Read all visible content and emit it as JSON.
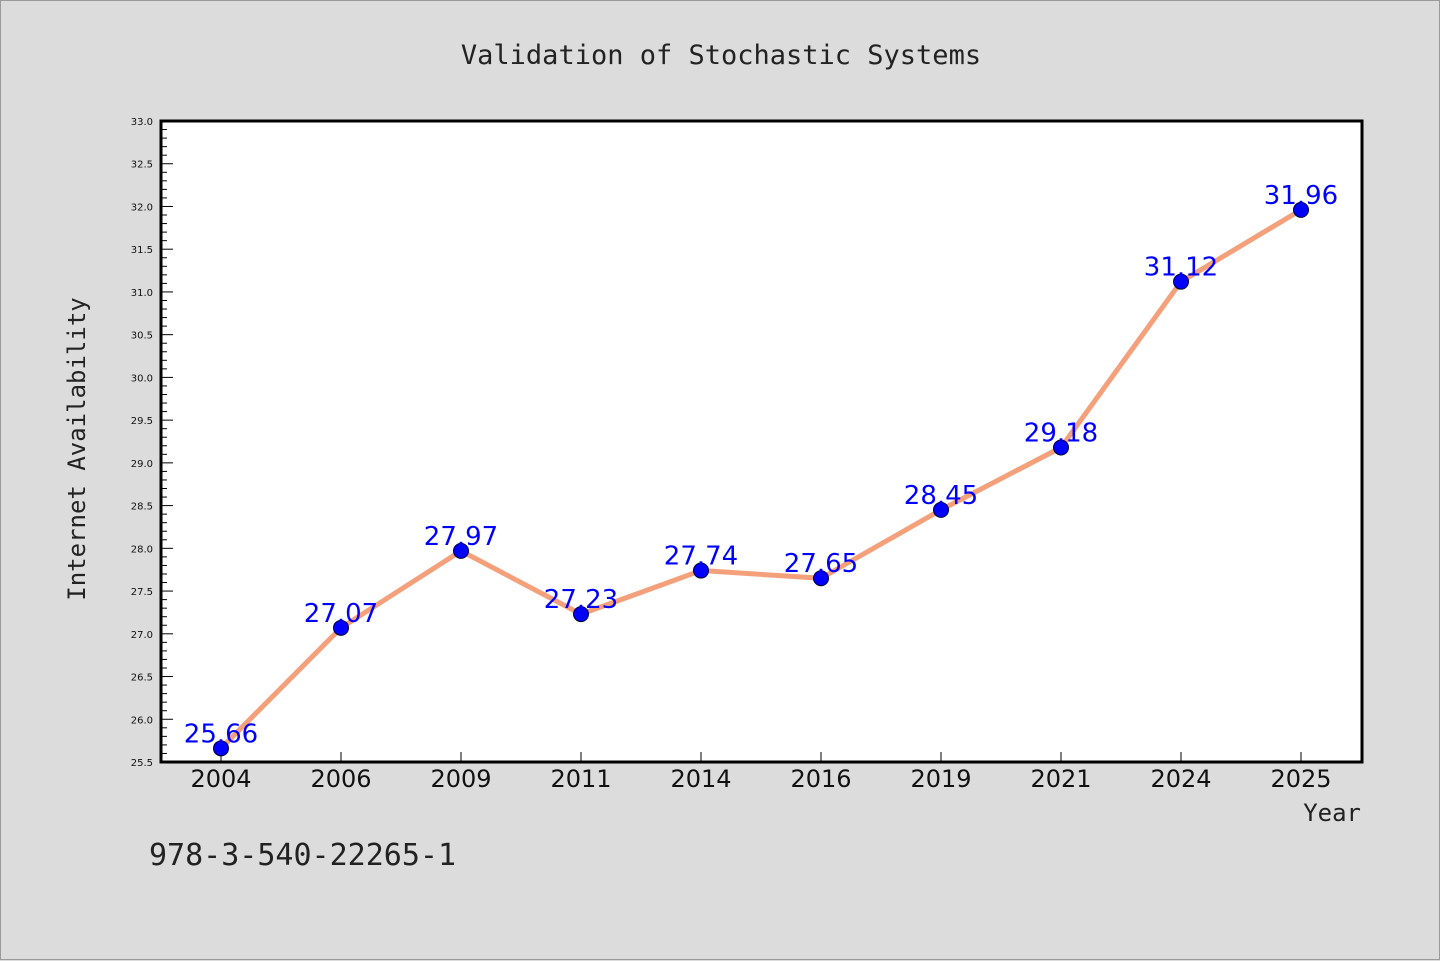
{
  "colors": {
    "background": "#dcdcdc",
    "plot_background": "#ffffff",
    "line": "#f4a07a",
    "marker": "#0000ff",
    "data_label": "#0000ff"
  },
  "footer": {
    "id_text": "978-3-540-22265-1"
  },
  "chart_data": {
    "type": "line",
    "title": "Validation of Stochastic Systems",
    "xlabel": "Year",
    "ylabel": "Internet Availability",
    "categories": [
      "2004",
      "2006",
      "2009",
      "2011",
      "2014",
      "2016",
      "2019",
      "2021",
      "2024",
      "2025"
    ],
    "series": [
      {
        "values": [
          25.66,
          27.07,
          27.97,
          27.23,
          27.74,
          27.65,
          28.45,
          29.18,
          31.12,
          31.96
        ]
      }
    ],
    "data_labels": [
      "25.66",
      "27.07",
      "27.97",
      "27.23",
      "27.74",
      "27.65",
      "28.45",
      "29.18",
      "31.12",
      "31.96"
    ],
    "ylim": [
      25.5,
      33.0
    ],
    "y_ticks": [
      "25.5",
      "26.0",
      "26.5",
      "27.0",
      "27.5",
      "28.0",
      "28.5",
      "29.0",
      "29.5",
      "30.0",
      "30.5",
      "31.0",
      "31.5",
      "32.0",
      "32.5",
      "33.0"
    ],
    "grid": false,
    "legend": "none"
  }
}
